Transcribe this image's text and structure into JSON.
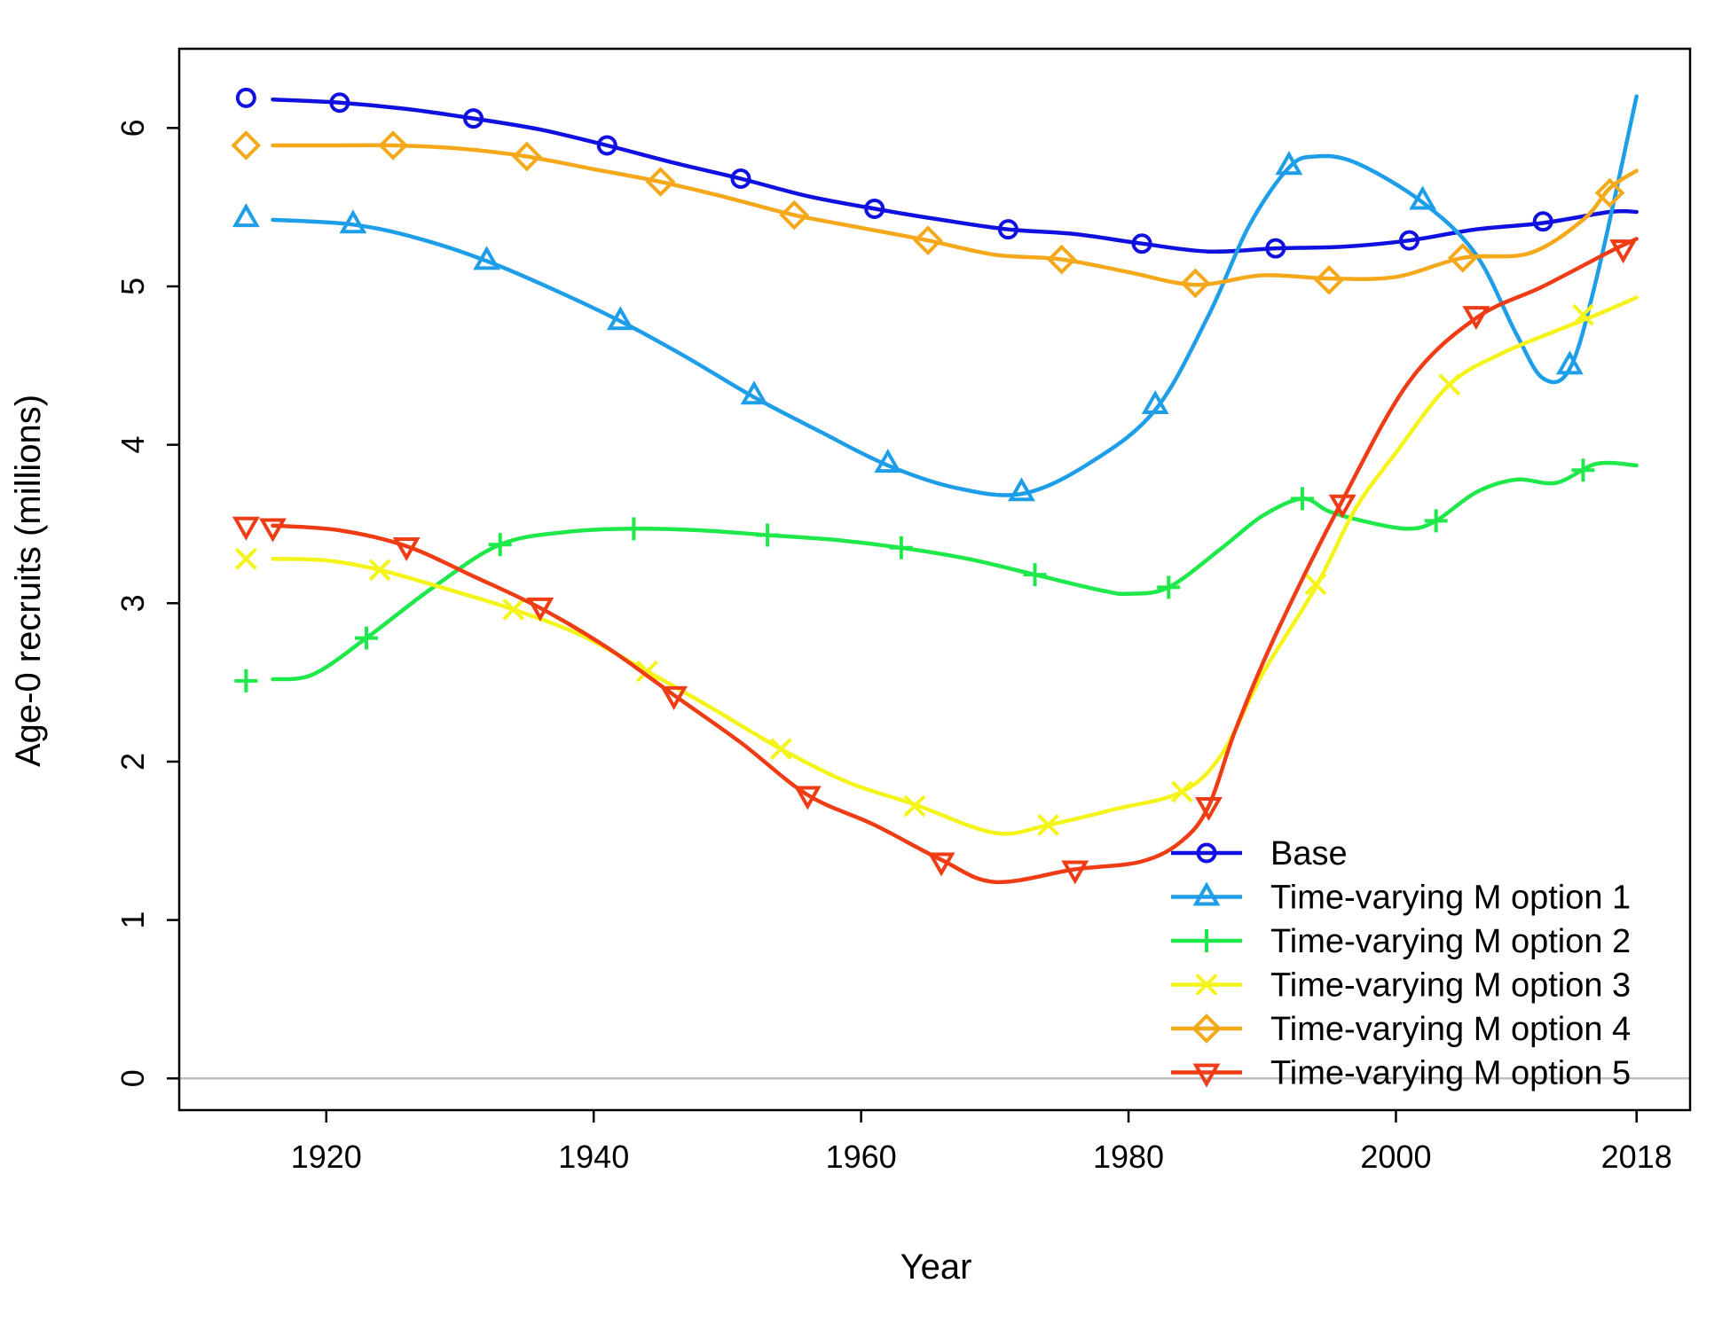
{
  "chart_data": {
    "type": "line",
    "xlabel": "Year",
    "ylabel": "Age-0 recruits (millions)",
    "xlim": [
      1909,
      2022
    ],
    "ylim": [
      -0.2,
      6.5
    ],
    "x_ticks": [
      1920,
      1940,
      1960,
      1980,
      2000,
      2018
    ],
    "y_ticks": [
      0,
      1,
      2,
      3,
      4,
      5,
      6
    ],
    "grid": false,
    "reference_line_y": 0,
    "legend_position": "bottom-right",
    "legend": [
      "Base",
      "Time-varying M option 1",
      "Time-varying M option 2",
      "Time-varying M option 3",
      "Time-varying M option 4",
      "Time-varying M option 5"
    ],
    "series": [
      {
        "name": "Base",
        "color": "#1010e0",
        "marker": "circle",
        "x": [
          1916,
          1921,
          1926,
          1931,
          1936,
          1941,
          1946,
          1951,
          1956,
          1961,
          1966,
          1971,
          1976,
          1981,
          1986,
          1991,
          1996,
          2001,
          2006,
          2011,
          2016,
          2018
        ],
        "values": [
          6.18,
          6.16,
          6.12,
          6.06,
          5.99,
          5.89,
          5.78,
          5.68,
          5.57,
          5.49,
          5.42,
          5.36,
          5.33,
          5.27,
          5.22,
          5.24,
          5.25,
          5.29,
          5.36,
          5.4,
          5.47,
          5.47
        ],
        "markers_x": [
          1914,
          1921,
          1931,
          1941,
          1951,
          1961,
          1971,
          1981,
          1991,
          2001,
          2011
        ],
        "markers_y": [
          6.19,
          6.16,
          6.06,
          5.89,
          5.68,
          5.49,
          5.36,
          5.27,
          5.24,
          5.29,
          5.41
        ]
      },
      {
        "name": "Time-varying M option 1",
        "color": "#1e9ee8",
        "marker": "triangle-up",
        "x": [
          1916,
          1922,
          1927,
          1932,
          1937,
          1942,
          1947,
          1952,
          1957,
          1962,
          1967,
          1972,
          1977,
          1982,
          1986,
          1989,
          1992,
          1994,
          1997,
          2002,
          2006,
          2009,
          2011,
          2013,
          2015,
          2018
        ],
        "values": [
          5.42,
          5.39,
          5.3,
          5.16,
          4.98,
          4.78,
          4.55,
          4.3,
          4.08,
          3.87,
          3.73,
          3.69,
          3.88,
          4.22,
          4.82,
          5.38,
          5.75,
          5.82,
          5.78,
          5.53,
          5.2,
          4.7,
          4.42,
          4.48,
          5.05,
          6.2
        ],
        "markers_x": [
          1914,
          1922,
          1932,
          1942,
          1952,
          1962,
          1972,
          1982,
          1992,
          2002,
          2013
        ],
        "markers_y": [
          5.43,
          5.39,
          5.16,
          4.78,
          4.31,
          3.88,
          3.7,
          4.25,
          5.76,
          5.54,
          4.5
        ]
      },
      {
        "name": "Time-varying M option 2",
        "color": "#1ee84a",
        "marker": "plus",
        "x": [
          1916,
          1919,
          1923,
          1928,
          1933,
          1938,
          1943,
          1948,
          1953,
          1958,
          1963,
          1968,
          1973,
          1978,
          1980,
          1983,
          1987,
          1990,
          1993,
          1995,
          1998,
          2001,
          2003,
          2006,
          2009,
          2012,
          2015,
          2018
        ],
        "values": [
          2.52,
          2.55,
          2.78,
          3.1,
          3.37,
          3.45,
          3.47,
          3.46,
          3.43,
          3.4,
          3.35,
          3.28,
          3.18,
          3.08,
          3.06,
          3.1,
          3.35,
          3.55,
          3.66,
          3.58,
          3.51,
          3.47,
          3.52,
          3.7,
          3.78,
          3.76,
          3.88,
          3.87
        ],
        "markers_x": [
          1914,
          1923,
          1933,
          1943,
          1953,
          1963,
          1973,
          1983,
          1993,
          2003,
          2014
        ],
        "markers_y": [
          2.51,
          2.78,
          3.37,
          3.47,
          3.43,
          3.35,
          3.18,
          3.1,
          3.66,
          3.52,
          3.84
        ]
      },
      {
        "name": "Time-varying M option 3",
        "color": "#f4f41a",
        "marker": "x",
        "x": [
          1916,
          1920,
          1924,
          1929,
          1934,
          1939,
          1944,
          1949,
          1954,
          1959,
          1964,
          1970,
          1974,
          1979,
          1984,
          1987,
          1990,
          1994,
          1997,
          2000,
          2004,
          2008,
          2012,
          2015,
          2018
        ],
        "values": [
          3.28,
          3.27,
          3.21,
          3.09,
          2.96,
          2.8,
          2.57,
          2.33,
          2.08,
          1.87,
          1.73,
          1.55,
          1.6,
          1.7,
          1.81,
          2.05,
          2.55,
          3.1,
          3.6,
          3.95,
          4.38,
          4.58,
          4.72,
          4.82,
          4.93
        ],
        "markers_x": [
          1914,
          1924,
          1934,
          1944,
          1954,
          1964,
          1974,
          1984,
          1994,
          2004,
          2014
        ],
        "markers_y": [
          3.28,
          3.21,
          2.96,
          2.57,
          2.08,
          1.72,
          1.6,
          1.81,
          3.12,
          4.38,
          4.82
        ]
      },
      {
        "name": "Time-varying M option 4",
        "color": "#f4a81a",
        "marker": "diamond",
        "x": [
          1916,
          1920,
          1925,
          1930,
          1935,
          1940,
          1945,
          1950,
          1955,
          1960,
          1965,
          1970,
          1975,
          1980,
          1985,
          1990,
          1995,
          2000,
          2005,
          2010,
          2014,
          2016,
          2018
        ],
        "values": [
          5.89,
          5.89,
          5.89,
          5.87,
          5.82,
          5.74,
          5.66,
          5.56,
          5.45,
          5.37,
          5.29,
          5.2,
          5.17,
          5.09,
          5.01,
          5.07,
          5.05,
          5.06,
          5.18,
          5.21,
          5.42,
          5.62,
          5.73
        ],
        "markers_x": [
          1914,
          1925,
          1935,
          1945,
          1955,
          1965,
          1975,
          1985,
          1995,
          2005,
          2016
        ],
        "markers_y": [
          5.89,
          5.89,
          5.82,
          5.66,
          5.45,
          5.29,
          5.17,
          5.02,
          5.04,
          5.18,
          5.59
        ]
      },
      {
        "name": "Time-varying M option 5",
        "color": "#f03c14",
        "marker": "triangle-down",
        "x": [
          1916,
          1921,
          1926,
          1931,
          1936,
          1941,
          1946,
          1951,
          1956,
          1961,
          1966,
          1970,
          1976,
          1981,
          1984,
          1986,
          1988,
          1991,
          1996,
          2001,
          2006,
          2011,
          2016,
          2018
        ],
        "values": [
          3.49,
          3.46,
          3.36,
          3.17,
          2.97,
          2.72,
          2.42,
          2.12,
          1.79,
          1.6,
          1.38,
          1.24,
          1.32,
          1.37,
          1.5,
          1.72,
          2.2,
          2.8,
          3.65,
          4.4,
          4.8,
          5.0,
          5.22,
          5.3
        ],
        "markers_x": [
          1914,
          1916,
          1926,
          1936,
          1946,
          1956,
          1966,
          1976,
          1986,
          1996,
          2006,
          2017
        ],
        "markers_y": [
          3.49,
          3.48,
          3.36,
          2.98,
          2.42,
          1.79,
          1.37,
          1.32,
          1.72,
          3.63,
          4.82,
          5.24
        ]
      }
    ]
  }
}
